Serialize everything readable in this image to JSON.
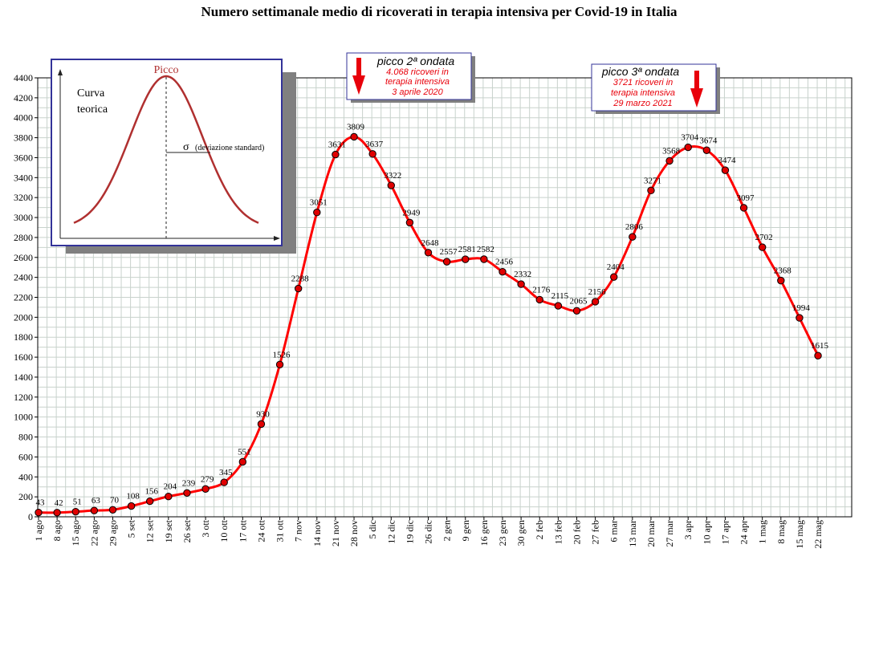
{
  "chart_data": {
    "type": "line",
    "title": "Numero settimanale medio di ricoverati in terapia intensiva per Covid-19 in Italia",
    "xlabel": "",
    "ylabel": "",
    "ylim": [
      0,
      4400
    ],
    "yticks": [
      0,
      200,
      400,
      600,
      800,
      1000,
      1200,
      1400,
      1600,
      1800,
      2000,
      2200,
      2400,
      2600,
      2800,
      3000,
      3200,
      3400,
      3600,
      3800,
      4000,
      4200,
      4400
    ],
    "grid": true,
    "categories": [
      "1 ago",
      "8 ago",
      "15 ago",
      "22 ago",
      "29 ago",
      "5 set",
      "12 set",
      "19 set",
      "26 set",
      "3 ott",
      "10 ott",
      "17 ott",
      "24 ott",
      "31 ott",
      "7 nov",
      "14 nov",
      "21 nov",
      "28 nov",
      "5 dic",
      "12 dic",
      "19 dic",
      "26 dic",
      "2 gen",
      "9 gen",
      "16 gen",
      "23 gen",
      "30 gen",
      "2 feb",
      "13 feb",
      "20 feb",
      "27 feb",
      "6 mar",
      "13 mar",
      "20 mar",
      "27 mar",
      "3 apr",
      "10 apr",
      "17 apr",
      "24 apr",
      "1 mag",
      "8 mag",
      "15 mag",
      "22 mag"
    ],
    "series": [
      {
        "values": [
          43,
          42,
          51,
          63,
          70,
          108,
          156,
          204,
          239,
          279,
          345,
          551,
          930,
          1526,
          2288,
          3051,
          3631,
          3809,
          3637,
          3322,
          2949,
          2648,
          2557,
          2581,
          2582,
          2456,
          2332,
          2176,
          2115,
          2065,
          2156,
          2404,
          2806,
          3271,
          3568,
          3704,
          3674,
          3474,
          3097,
          2702,
          2368,
          1994,
          1615
        ],
        "color": "#ff0000",
        "marker_color": "#e00000"
      }
    ],
    "annotations": [
      {
        "name": "picco-2",
        "heading": "picco 2ª ondata",
        "lines": [
          "4.068 ricoveri in",
          "terapia intensiva",
          "3 aprile 2020"
        ]
      },
      {
        "name": "picco-3",
        "heading": "picco 3ª ondata",
        "lines": [
          "3721 ricoveri in",
          "terapia intensiva",
          "29 marzo 2021"
        ]
      }
    ],
    "inset": {
      "peak_label": "Picco",
      "curve_label_1": "Curva",
      "curve_label_2": "teorica",
      "sigma_symbol": "σ",
      "sigma_label": "(deviazione standard)"
    }
  }
}
